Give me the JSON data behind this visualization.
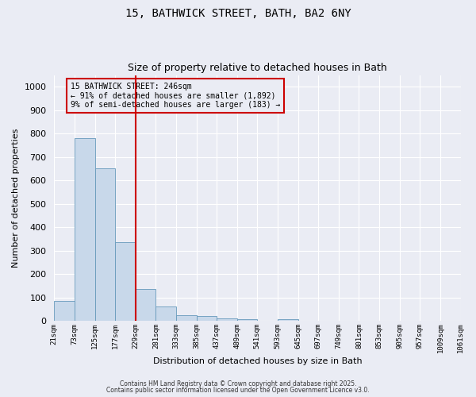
{
  "title_line1": "15, BATHWICK STREET, BATH, BA2 6NY",
  "title_line2": "Size of property relative to detached houses in Bath",
  "xlabel": "Distribution of detached houses by size in Bath",
  "ylabel": "Number of detached properties",
  "bar_values": [
    85,
    780,
    650,
    335,
    135,
    60,
    25,
    20,
    10,
    8,
    0,
    8,
    0,
    0,
    0,
    0,
    0,
    0,
    0,
    0
  ],
  "bin_labels": [
    "21sqm",
    "73sqm",
    "125sqm",
    "177sqm",
    "229sqm",
    "281sqm",
    "333sqm",
    "385sqm",
    "437sqm",
    "489sqm",
    "541sqm",
    "593sqm",
    "645sqm",
    "697sqm",
    "749sqm",
    "801sqm",
    "853sqm",
    "905sqm",
    "957sqm",
    "1009sqm",
    "1061sqm"
  ],
  "bar_color": "#c8d8ea",
  "bar_edge_color": "#6699bb",
  "vline_x_bin": 4,
  "vline_color": "#cc0000",
  "annotation_line1": "15 BATHWICK STREET: 246sqm",
  "annotation_line2": "← 91% of detached houses are smaller (1,892)",
  "annotation_line3": "9% of semi-detached houses are larger (183) →",
  "annotation_box_color": "#cc0000",
  "annotation_text_color": "#000000",
  "ylim": [
    0,
    1050
  ],
  "yticks": [
    0,
    100,
    200,
    300,
    400,
    500,
    600,
    700,
    800,
    900,
    1000
  ],
  "background_color": "#eaecf4",
  "grid_color": "#ffffff",
  "footer_line1": "Contains HM Land Registry data © Crown copyright and database right 2025.",
  "footer_line2": "Contains public sector information licensed under the Open Government Licence v3.0."
}
